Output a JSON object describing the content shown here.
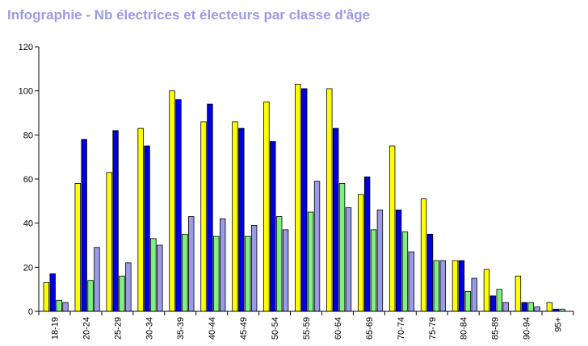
{
  "title": "Infographie - Nb électrices et électeurs par classe d'âge",
  "chart_data": {
    "type": "bar",
    "title": "Infographie - Nb électrices et électeurs par classe d'âge",
    "xlabel": "",
    "ylabel": "",
    "ylim": [
      0,
      120
    ],
    "yticks": [
      0,
      20,
      40,
      60,
      80,
      100,
      120
    ],
    "grid": false,
    "legend": "none",
    "categories": [
      "18-19",
      "20-24",
      "25-29",
      "30-34",
      "35-39",
      "40-44",
      "45-49",
      "50-54",
      "55-59",
      "60-64",
      "65-69",
      "70-74",
      "75-79",
      "80-84",
      "85-89",
      "90-94",
      "95+"
    ],
    "series": [
      {
        "color": "#ffff00",
        "values": [
          13,
          58,
          63,
          83,
          100,
          86,
          86,
          95,
          103,
          101,
          53,
          75,
          51,
          23,
          19,
          16,
          4
        ]
      },
      {
        "color": "#0000dd",
        "values": [
          17,
          78,
          82,
          75,
          96,
          94,
          83,
          77,
          101,
          83,
          61,
          46,
          35,
          23,
          7,
          4,
          1
        ]
      },
      {
        "color": "#80f080",
        "values": [
          5,
          14,
          16,
          33,
          35,
          34,
          34,
          43,
          45,
          58,
          37,
          36,
          23,
          9,
          10,
          4,
          1
        ]
      },
      {
        "color": "#9a9ae6",
        "values": [
          4,
          29,
          22,
          30,
          43,
          42,
          39,
          37,
          59,
          47,
          46,
          27,
          23,
          15,
          4,
          2,
          0
        ]
      }
    ]
  }
}
